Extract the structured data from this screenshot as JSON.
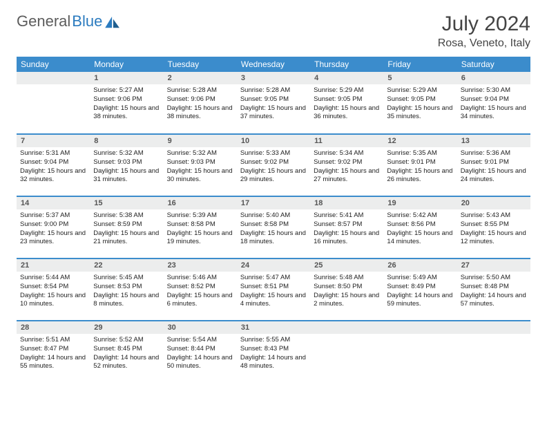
{
  "brand": {
    "part1": "General",
    "part2": "Blue"
  },
  "title": "July 2024",
  "location": "Rosa, Veneto, Italy",
  "colors": {
    "header_bg": "#3b8ccc",
    "header_text": "#ffffff",
    "daynum_bg": "#eceded",
    "rule": "#3b8ccc",
    "brand_gray": "#5c5c5c",
    "brand_blue": "#2b7bbf"
  },
  "weekdays": [
    "Sunday",
    "Monday",
    "Tuesday",
    "Wednesday",
    "Thursday",
    "Friday",
    "Saturday"
  ],
  "weeks": [
    [
      null,
      {
        "n": "1",
        "sunrise": "5:27 AM",
        "sunset": "9:06 PM",
        "daylight": "15 hours and 38 minutes."
      },
      {
        "n": "2",
        "sunrise": "5:28 AM",
        "sunset": "9:06 PM",
        "daylight": "15 hours and 38 minutes."
      },
      {
        "n": "3",
        "sunrise": "5:28 AM",
        "sunset": "9:05 PM",
        "daylight": "15 hours and 37 minutes."
      },
      {
        "n": "4",
        "sunrise": "5:29 AM",
        "sunset": "9:05 PM",
        "daylight": "15 hours and 36 minutes."
      },
      {
        "n": "5",
        "sunrise": "5:29 AM",
        "sunset": "9:05 PM",
        "daylight": "15 hours and 35 minutes."
      },
      {
        "n": "6",
        "sunrise": "5:30 AM",
        "sunset": "9:04 PM",
        "daylight": "15 hours and 34 minutes."
      }
    ],
    [
      {
        "n": "7",
        "sunrise": "5:31 AM",
        "sunset": "9:04 PM",
        "daylight": "15 hours and 32 minutes."
      },
      {
        "n": "8",
        "sunrise": "5:32 AM",
        "sunset": "9:03 PM",
        "daylight": "15 hours and 31 minutes."
      },
      {
        "n": "9",
        "sunrise": "5:32 AM",
        "sunset": "9:03 PM",
        "daylight": "15 hours and 30 minutes."
      },
      {
        "n": "10",
        "sunrise": "5:33 AM",
        "sunset": "9:02 PM",
        "daylight": "15 hours and 29 minutes."
      },
      {
        "n": "11",
        "sunrise": "5:34 AM",
        "sunset": "9:02 PM",
        "daylight": "15 hours and 27 minutes."
      },
      {
        "n": "12",
        "sunrise": "5:35 AM",
        "sunset": "9:01 PM",
        "daylight": "15 hours and 26 minutes."
      },
      {
        "n": "13",
        "sunrise": "5:36 AM",
        "sunset": "9:01 PM",
        "daylight": "15 hours and 24 minutes."
      }
    ],
    [
      {
        "n": "14",
        "sunrise": "5:37 AM",
        "sunset": "9:00 PM",
        "daylight": "15 hours and 23 minutes."
      },
      {
        "n": "15",
        "sunrise": "5:38 AM",
        "sunset": "8:59 PM",
        "daylight": "15 hours and 21 minutes."
      },
      {
        "n": "16",
        "sunrise": "5:39 AM",
        "sunset": "8:58 PM",
        "daylight": "15 hours and 19 minutes."
      },
      {
        "n": "17",
        "sunrise": "5:40 AM",
        "sunset": "8:58 PM",
        "daylight": "15 hours and 18 minutes."
      },
      {
        "n": "18",
        "sunrise": "5:41 AM",
        "sunset": "8:57 PM",
        "daylight": "15 hours and 16 minutes."
      },
      {
        "n": "19",
        "sunrise": "5:42 AM",
        "sunset": "8:56 PM",
        "daylight": "15 hours and 14 minutes."
      },
      {
        "n": "20",
        "sunrise": "5:43 AM",
        "sunset": "8:55 PM",
        "daylight": "15 hours and 12 minutes."
      }
    ],
    [
      {
        "n": "21",
        "sunrise": "5:44 AM",
        "sunset": "8:54 PM",
        "daylight": "15 hours and 10 minutes."
      },
      {
        "n": "22",
        "sunrise": "5:45 AM",
        "sunset": "8:53 PM",
        "daylight": "15 hours and 8 minutes."
      },
      {
        "n": "23",
        "sunrise": "5:46 AM",
        "sunset": "8:52 PM",
        "daylight": "15 hours and 6 minutes."
      },
      {
        "n": "24",
        "sunrise": "5:47 AM",
        "sunset": "8:51 PM",
        "daylight": "15 hours and 4 minutes."
      },
      {
        "n": "25",
        "sunrise": "5:48 AM",
        "sunset": "8:50 PM",
        "daylight": "15 hours and 2 minutes."
      },
      {
        "n": "26",
        "sunrise": "5:49 AM",
        "sunset": "8:49 PM",
        "daylight": "14 hours and 59 minutes."
      },
      {
        "n": "27",
        "sunrise": "5:50 AM",
        "sunset": "8:48 PM",
        "daylight": "14 hours and 57 minutes."
      }
    ],
    [
      {
        "n": "28",
        "sunrise": "5:51 AM",
        "sunset": "8:47 PM",
        "daylight": "14 hours and 55 minutes."
      },
      {
        "n": "29",
        "sunrise": "5:52 AM",
        "sunset": "8:45 PM",
        "daylight": "14 hours and 52 minutes."
      },
      {
        "n": "30",
        "sunrise": "5:54 AM",
        "sunset": "8:44 PM",
        "daylight": "14 hours and 50 minutes."
      },
      {
        "n": "31",
        "sunrise": "5:55 AM",
        "sunset": "8:43 PM",
        "daylight": "14 hours and 48 minutes."
      },
      null,
      null,
      null
    ]
  ],
  "labels": {
    "sunrise": "Sunrise:",
    "sunset": "Sunset:",
    "daylight": "Daylight:"
  }
}
